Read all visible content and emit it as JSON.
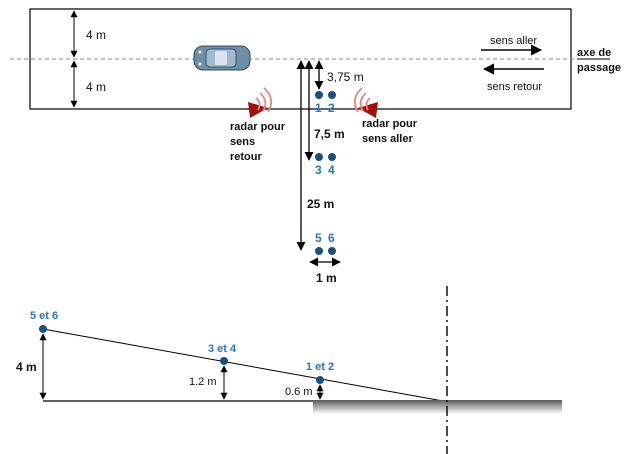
{
  "top_view": {
    "road_half_width_top": "4 m",
    "road_half_width_bottom": "4 m",
    "direction_forward": "sens aller",
    "direction_return": "sens retour",
    "axis_label_line1": "axe de",
    "axis_label_line2": "passage",
    "radar_return_label": [
      "radar pour",
      "sens",
      "retour"
    ],
    "radar_forward_label": [
      "radar pour",
      "sens aller"
    ],
    "dist_axis_to_sensors": "3,75 m",
    "dist_12_to_34": "7,5 m",
    "dist_12_to_56": "25 m",
    "sensor_spacing": "1 m",
    "sensor_labels": [
      "1",
      "2",
      "3",
      "4",
      "5",
      "6"
    ]
  },
  "side_view": {
    "label_56": "5 et 6",
    "label_34": "3 et 4",
    "label_12": "1 et 2",
    "height_56": "4 m",
    "height_34": "1.2 m",
    "height_12": "0.6 m"
  },
  "colors": {
    "sensor": "#1f4e79",
    "sensor_label": "#2e75b6",
    "radar": "#a01010",
    "waves": "#e08a8a"
  }
}
